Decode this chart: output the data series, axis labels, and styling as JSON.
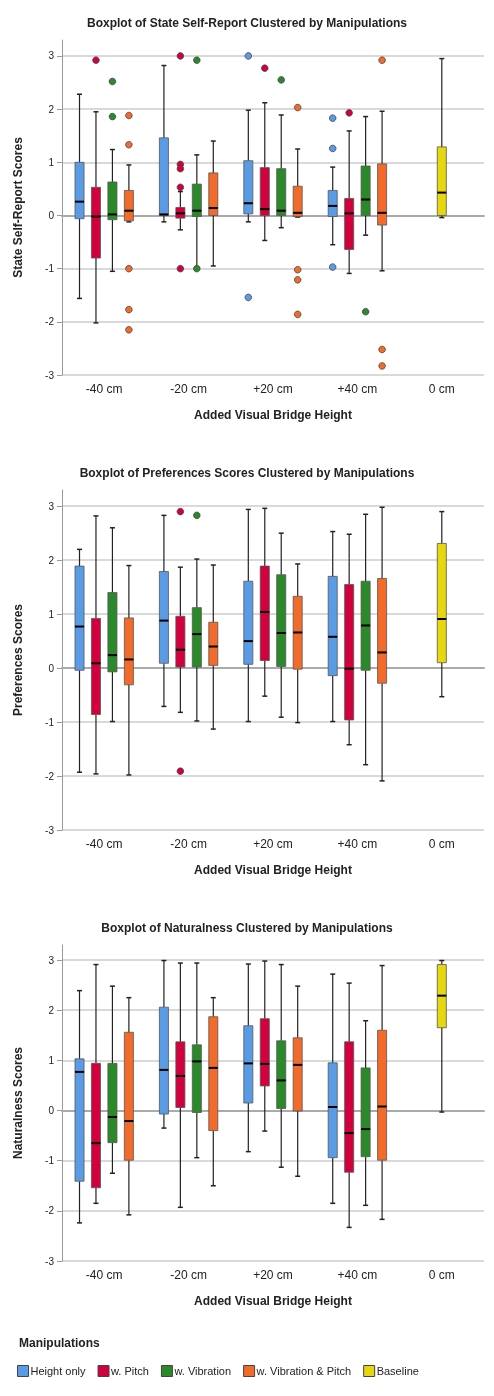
{
  "chart_data": [
    {
      "type": "box",
      "title": "Boxplot of State Self-Report Clustered by Manipulations",
      "xlabel": "Added Visual Bridge Height",
      "ylabel": "State Self-Report Scores",
      "categories": [
        "-40 cm",
        "-20 cm",
        "+20 cm",
        "+40 cm",
        "0 cm"
      ],
      "ylim": [
        -3,
        3.3
      ],
      "yticks": [
        -3,
        -2,
        -1,
        0,
        1,
        2,
        3
      ],
      "grid": "y",
      "legend": false,
      "series": [
        {
          "color": "#5a9be6",
          "boxes": [
            {
              "low": -1.56,
              "q1": -0.06,
              "median": 0.26,
              "q3": 1.0,
              "high": 2.28
            },
            {
              "low": -0.12,
              "q1": 0,
              "median": 0.02,
              "q3": 1.46,
              "high": 2.82
            },
            {
              "low": -0.12,
              "q1": 0.03,
              "median": 0.23,
              "q3": 1.03,
              "high": 1.98,
              "outliers": [
                3.0,
                -1.54
              ]
            },
            {
              "low": -0.55,
              "q1": -0.02,
              "median": 0.18,
              "q3": 0.47,
              "high": 0.91,
              "outliers": [
                1.83,
                1.26,
                -0.97
              ]
            },
            null
          ]
        },
        {
          "color": "#d2003c",
          "boxes": [
            {
              "low": -2.02,
              "q1": -0.8,
              "median": -0.02,
              "q3": 0.53,
              "high": 1.95,
              "outliers": [
                2.92
              ]
            },
            {
              "low": -0.27,
              "q1": -0.05,
              "median": 0.04,
              "q3": 0.15,
              "high": 0.45,
              "outliers": [
                0.53,
                0.96,
                0.88,
                3.0,
                -1.0
              ]
            },
            {
              "low": -0.47,
              "q1": 0,
              "median": 0.12,
              "q3": 0.9,
              "high": 2.12,
              "outliers": [
                2.77
              ]
            },
            {
              "low": -1.09,
              "q1": -0.64,
              "median": 0.04,
              "q3": 0.32,
              "high": 1.59,
              "outliers": [
                1.93
              ]
            },
            null
          ]
        },
        {
          "color": "#2a8a2a",
          "boxes": [
            {
              "low": -1.05,
              "q1": -0.08,
              "median": 0.02,
              "q3": 0.63,
              "high": 1.24,
              "outliers": [
                2.52,
                1.86
              ]
            },
            {
              "low": -0.97,
              "q1": -0.02,
              "median": 0.09,
              "q3": 0.59,
              "high": 1.14,
              "outliers": [
                -1.0,
                2.92
              ]
            },
            {
              "low": -0.23,
              "q1": 0,
              "median": 0.09,
              "q3": 0.88,
              "high": 1.89,
              "outliers": [
                2.55
              ]
            },
            {
              "low": -0.37,
              "q1": 0,
              "median": 0.3,
              "q3": 0.93,
              "high": 1.86,
              "outliers": [
                -1.81
              ]
            },
            null
          ]
        },
        {
          "color": "#f26b2a",
          "boxes": [
            {
              "low": -0.12,
              "q1": -0.1,
              "median": 0.09,
              "q3": 0.47,
              "high": 0.95,
              "outliers": [
                1.88,
                1.33,
                -1.0,
                -1.77,
                -2.15
              ]
            },
            {
              "low": -0.95,
              "q1": 0,
              "median": 0.14,
              "q3": 0.8,
              "high": 1.4
            },
            {
              "low": -0.03,
              "q1": -0.02,
              "median": 0.05,
              "q3": 0.55,
              "high": 1.25,
              "outliers": [
                2.03,
                -1.02,
                -1.21,
                -1.86
              ]
            },
            {
              "low": -1.04,
              "q1": -0.18,
              "median": 0.05,
              "q3": 0.97,
              "high": 1.96,
              "outliers": [
                2.92,
                -2.52,
                -2.83
              ]
            },
            null
          ]
        },
        {
          "color": "#e6d70f",
          "boxes": [
            null,
            null,
            null,
            null,
            {
              "low": -0.04,
              "q1": 0,
              "median": 0.43,
              "q3": 1.29,
              "high": 2.95
            }
          ]
        }
      ]
    },
    {
      "type": "box",
      "title": "Boxplot of Preferences Scores Clustered by Manipulations",
      "xlabel": "Added Visual Bridge Height",
      "ylabel": "Preferences Scores",
      "categories": [
        "-40 cm",
        "-20 cm",
        "+20 cm",
        "+40 cm",
        "0 cm"
      ],
      "ylim": [
        -3,
        3.3
      ],
      "yticks": [
        -3,
        -2,
        -1,
        0,
        1,
        2,
        3
      ],
      "grid": "y",
      "legend": false,
      "series": [
        {
          "color": "#5a9be6",
          "boxes": [
            {
              "low": -1.93,
              "q1": -0.04,
              "median": 0.77,
              "q3": 1.89,
              "high": 2.2
            },
            {
              "low": -0.71,
              "q1": 0.09,
              "median": 0.88,
              "q3": 1.79,
              "high": 2.83
            },
            {
              "low": -0.99,
              "q1": 0.07,
              "median": 0.5,
              "q3": 1.61,
              "high": 2.94
            },
            {
              "low": -0.99,
              "q1": -0.14,
              "median": 0.58,
              "q3": 1.7,
              "high": 2.53
            },
            null
          ]
        },
        {
          "color": "#d2003c",
          "boxes": [
            {
              "low": -1.96,
              "q1": -0.86,
              "median": 0.09,
              "q3": 0.92,
              "high": 2.82
            },
            {
              "low": -0.82,
              "q1": 0.02,
              "median": 0.34,
              "q3": 0.96,
              "high": 1.87,
              "outliers": [
                2.9,
                -1.91
              ]
            },
            {
              "low": -0.52,
              "q1": 0.14,
              "median": 1.04,
              "q3": 1.89,
              "high": 2.96
            },
            {
              "low": -1.42,
              "q1": -0.96,
              "median": -0.01,
              "q3": 1.55,
              "high": 2.48
            },
            null
          ]
        },
        {
          "color": "#2a8a2a",
          "boxes": [
            {
              "low": -0.99,
              "q1": -0.07,
              "median": 0.24,
              "q3": 1.4,
              "high": 2.6
            },
            {
              "low": -0.98,
              "q1": 0.02,
              "median": 0.63,
              "q3": 1.12,
              "high": 2.02,
              "outliers": [
                2.83
              ]
            },
            {
              "low": -0.91,
              "q1": 0.03,
              "median": 0.65,
              "q3": 1.73,
              "high": 2.5
            },
            {
              "low": -1.79,
              "q1": -0.04,
              "median": 0.79,
              "q3": 1.61,
              "high": 2.85
            },
            null
          ]
        },
        {
          "color": "#f26b2a",
          "boxes": [
            {
              "low": -1.98,
              "q1": -0.31,
              "median": 0.16,
              "q3": 0.93,
              "high": 1.9
            },
            {
              "low": -1.13,
              "q1": 0.05,
              "median": 0.4,
              "q3": 0.85,
              "high": 1.91
            },
            {
              "low": -1.01,
              "q1": -0.02,
              "median": 0.66,
              "q3": 1.33,
              "high": 1.93
            },
            {
              "low": -2.09,
              "q1": -0.28,
              "median": 0.29,
              "q3": 1.66,
              "high": 2.98
            },
            null
          ]
        },
        {
          "color": "#e6d70f",
          "boxes": [
            null,
            null,
            null,
            null,
            {
              "low": -0.53,
              "q1": 0.1,
              "median": 0.91,
              "q3": 2.31,
              "high": 2.9
            }
          ]
        }
      ]
    },
    {
      "type": "box",
      "title": "Boxplot of Naturalness Clustered by Manipulations",
      "xlabel": "Added Visual Bridge Height",
      "ylabel": "Naturalness Scores",
      "categories": [
        "-40 cm",
        "-20 cm",
        "+20 cm",
        "+40 cm",
        "0 cm"
      ],
      "ylim": [
        -3,
        3.3
      ],
      "yticks": [
        -3,
        -2,
        -1,
        0,
        1,
        2,
        3
      ],
      "grid": "y",
      "legend": "bottom left",
      "legend_title": "Manipulations",
      "series": [
        {
          "name": "Height only",
          "color": "#5a9be6",
          "boxes": [
            {
              "low": -2.24,
              "q1": -1.41,
              "median": 0.77,
              "q3": 1.03,
              "high": 2.39
            },
            {
              "low": -0.35,
              "q1": -0.07,
              "median": 0.81,
              "q3": 2.06,
              "high": 2.99
            },
            {
              "low": -0.82,
              "q1": 0.15,
              "median": 0.94,
              "q3": 1.69,
              "high": 2.92
            },
            {
              "low": -1.85,
              "q1": -0.94,
              "median": 0.07,
              "q3": 0.95,
              "high": 2.72
            },
            null
          ]
        },
        {
          "name": "w. Pitch",
          "color": "#d2003c",
          "boxes": [
            {
              "low": -1.85,
              "q1": -1.54,
              "median": -0.65,
              "q3": 0.94,
              "high": 2.91
            },
            {
              "low": -1.93,
              "q1": 0.06,
              "median": 0.69,
              "q3": 1.37,
              "high": 2.94
            },
            {
              "low": -0.41,
              "q1": 0.49,
              "median": 0.93,
              "q3": 1.83,
              "high": 2.98
            },
            {
              "low": -2.33,
              "q1": -1.23,
              "median": -0.45,
              "q3": 1.37,
              "high": 2.54
            },
            null
          ]
        },
        {
          "name": "w. Vibration",
          "color": "#2a8a2a",
          "boxes": [
            {
              "low": -1.25,
              "q1": -0.64,
              "median": -0.13,
              "q3": 0.94,
              "high": 2.48
            },
            {
              "low": -0.94,
              "q1": -0.04,
              "median": 0.98,
              "q3": 1.31,
              "high": 2.94
            },
            {
              "low": -1.13,
              "q1": 0.04,
              "median": 0.6,
              "q3": 1.39,
              "high": 2.91
            },
            {
              "low": -1.89,
              "q1": -0.92,
              "median": -0.37,
              "q3": 0.85,
              "high": 1.79
            },
            null
          ]
        },
        {
          "name": "w. Vibration & Pitch",
          "color": "#f26b2a",
          "boxes": [
            {
              "low": -2.08,
              "q1": -0.99,
              "median": -0.21,
              "q3": 1.56,
              "high": 2.25
            },
            {
              "low": -1.5,
              "q1": -0.4,
              "median": 0.85,
              "q3": 1.87,
              "high": 2.25
            },
            {
              "low": -1.31,
              "q1": -0.01,
              "median": 0.91,
              "q3": 1.45,
              "high": 2.48
            },
            {
              "low": -2.17,
              "q1": -0.99,
              "median": 0.08,
              "q3": 1.6,
              "high": 2.89
            },
            null
          ]
        },
        {
          "name": "Baseline",
          "color": "#e6d70f",
          "boxes": [
            null,
            null,
            null,
            null,
            {
              "low": -0.03,
              "q1": 1.65,
              "median": 2.29,
              "q3": 2.91,
              "high": 2.99
            }
          ]
        }
      ]
    }
  ]
}
